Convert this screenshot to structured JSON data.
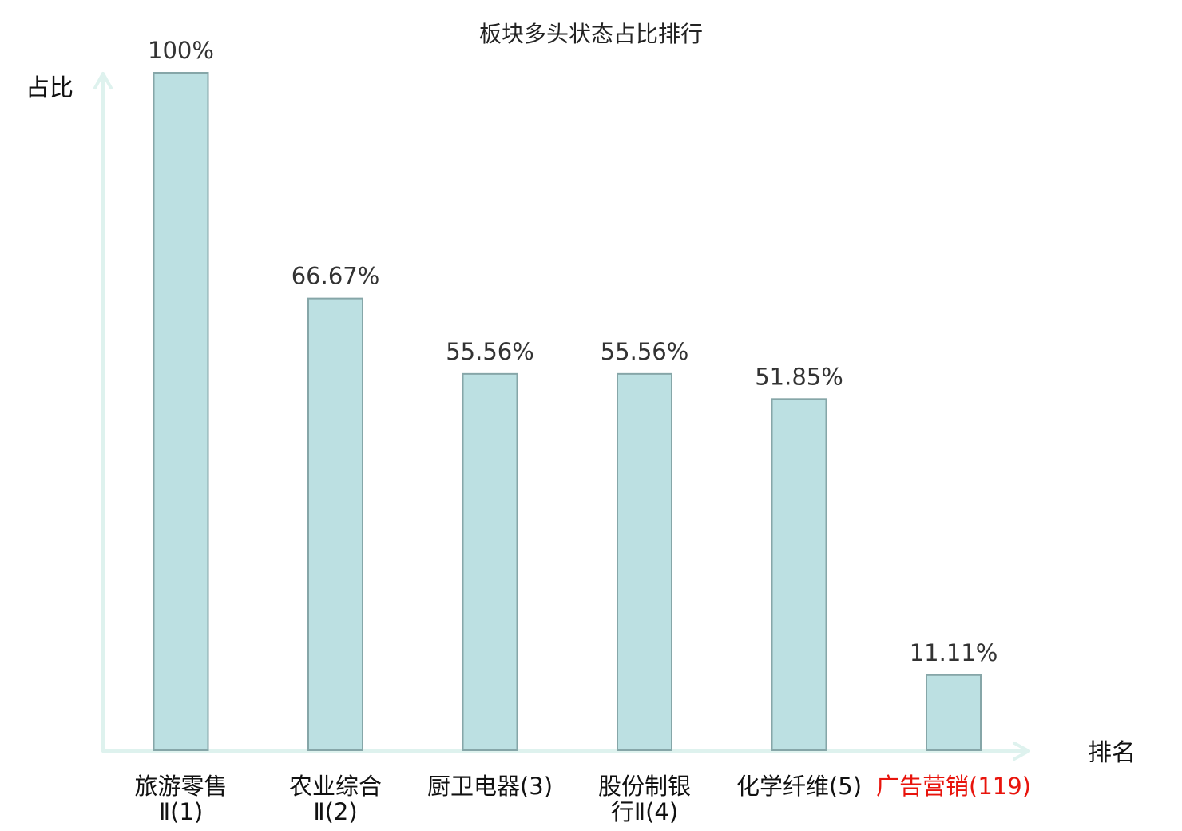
{
  "chart_data": {
    "type": "bar",
    "title": "板块多头状态占比排行",
    "ylabel": "占比",
    "xlabel": "排名",
    "ylim": [
      0,
      100
    ],
    "categories": [
      {
        "lines": [
          "旅游零售",
          "Ⅱ(1)"
        ]
      },
      {
        "lines": [
          "农业综合",
          "Ⅱ(2)"
        ]
      },
      {
        "lines": [
          "厨卫电器(3)"
        ]
      },
      {
        "lines": [
          "股份制银",
          "行Ⅱ(4)"
        ]
      },
      {
        "lines": [
          "化学纤维(5)"
        ]
      },
      {
        "lines": [
          "广告营销(119)"
        ],
        "highlight": true
      }
    ],
    "values": [
      100,
      66.67,
      55.56,
      55.56,
      51.85,
      11.11
    ],
    "value_labels": [
      "100%",
      "66.67%",
      "55.56%",
      "55.56%",
      "51.85%",
      "11.11%"
    ],
    "grid": false,
    "colors": {
      "bar_fill": "#bce0e2",
      "bar_stroke": "#86a6a8",
      "axis": "#def2ee",
      "text": "#333333",
      "highlight": "#e8140c"
    }
  }
}
